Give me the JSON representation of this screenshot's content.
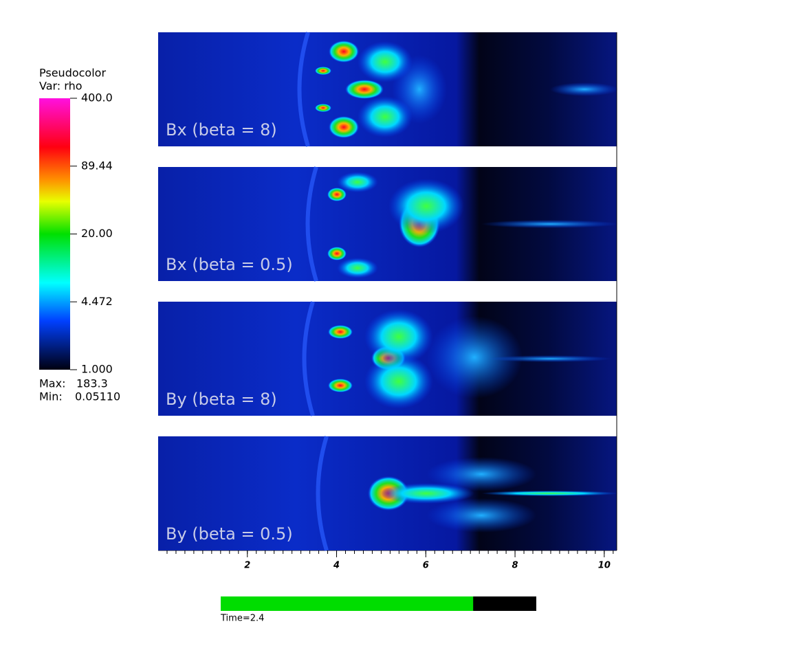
{
  "legend": {
    "title": "Pseudocolor",
    "variable": "Var: rho",
    "ticks": [
      "400.0",
      "89.44",
      "20.00",
      "4.472",
      "1.000"
    ],
    "max_label": "Max:",
    "max": "183.3",
    "min_label": "Min:",
    "min": "0.05110"
  },
  "panels": [
    {
      "label": "Bx (beta = 8)"
    },
    {
      "label": "Bx (beta = 0.5)"
    },
    {
      "label": "By (beta = 8)"
    },
    {
      "label": "By (beta = 0.5)"
    }
  ],
  "x_axis": {
    "ticks": [
      2,
      4,
      6,
      8,
      10
    ],
    "lim": [
      0,
      10.28
    ]
  },
  "time": {
    "label": "Time=2.4",
    "progress": 0.8
  }
}
